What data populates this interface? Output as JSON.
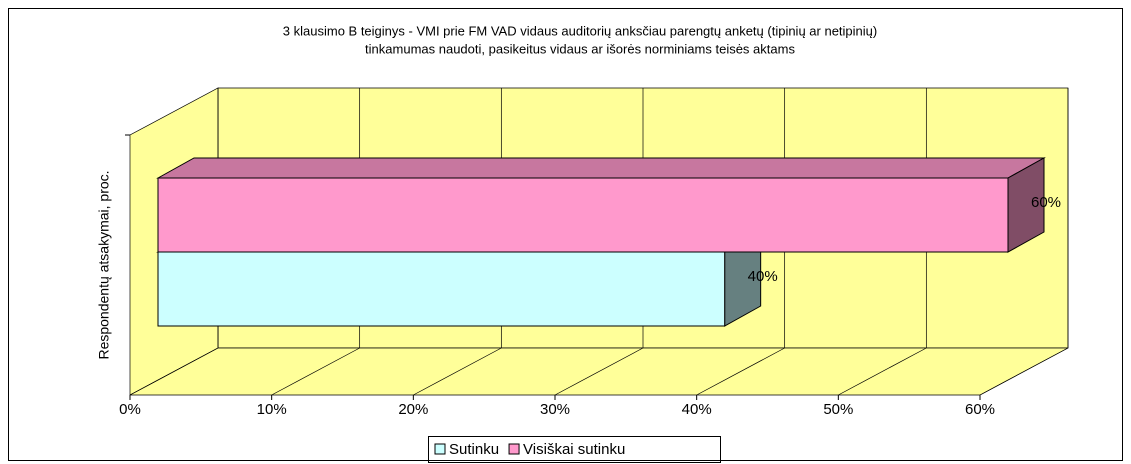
{
  "chart_data": {
    "type": "bar3d",
    "orientation": "horizontal",
    "title": [
      "3 klausimo B teiginys - VMI prie FM VAD vidaus auditorių anksčiau parengtų anketų (tipinių ar netipinių)",
      "tinkamumas naudoti, pasikeitus vidaus ar išorės norminiams teisės aktams"
    ],
    "ylabel": "Respondentų atsakymai, proc.",
    "categories": [
      null
    ],
    "series": [
      {
        "name": "Sutinku",
        "color": "#ccffff",
        "values": [
          40
        ],
        "value_labels": [
          "40%"
        ]
      },
      {
        "name": "Visiškai sutinku",
        "color": "#ff99cc",
        "values": [
          60
        ],
        "value_labels": [
          "60%"
        ]
      }
    ],
    "xlim": [
      0,
      60
    ],
    "xticks": [
      {
        "value": 0,
        "label": "0%"
      },
      {
        "value": 10,
        "label": "10%"
      },
      {
        "value": 20,
        "label": "20%"
      },
      {
        "value": 30,
        "label": "30%"
      },
      {
        "value": 40,
        "label": "40%"
      },
      {
        "value": 50,
        "label": "50%"
      },
      {
        "value": 60,
        "label": "60%"
      }
    ],
    "grid": true,
    "wall_color": "#ffff99",
    "legend": "bottom"
  }
}
